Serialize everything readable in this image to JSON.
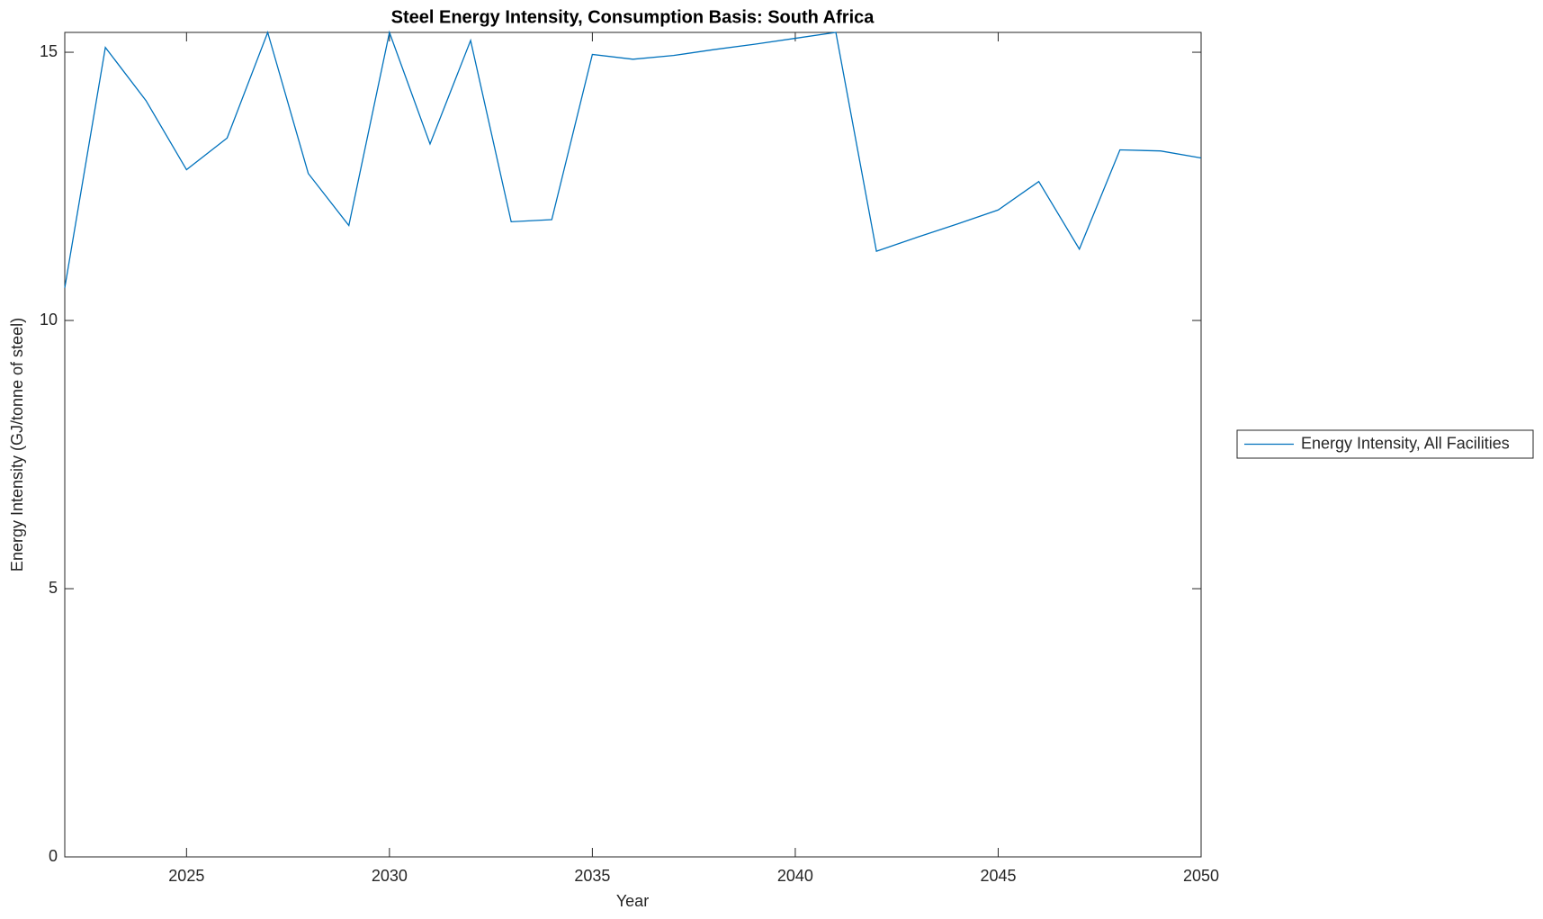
{
  "chart_data": {
    "type": "line",
    "title": "Steel Energy Intensity, Consumption Basis: South Africa",
    "xlabel": "Year",
    "ylabel": "Energy Intensity (GJ/tonne of steel)",
    "x": [
      2022,
      2023,
      2024,
      2025,
      2026,
      2027,
      2028,
      2029,
      2030,
      2031,
      2032,
      2033,
      2034,
      2035,
      2036,
      2037,
      2038,
      2039,
      2040,
      2041,
      2042,
      2043,
      2044,
      2045,
      2046,
      2047,
      2048,
      2049,
      2050
    ],
    "series": [
      {
        "name": "Energy Intensity, All Facilities",
        "color": "#0072bd",
        "values": [
          10.61,
          15.09,
          14.1,
          12.81,
          13.4,
          15.37,
          12.74,
          11.77,
          15.37,
          13.29,
          15.22,
          11.84,
          11.88,
          14.96,
          14.87,
          14.94,
          15.05,
          15.15,
          15.26,
          15.37,
          11.29,
          11.55,
          11.8,
          12.06,
          12.59,
          11.33,
          13.18,
          13.16,
          13.03
        ]
      }
    ],
    "xlim": [
      2022,
      2050
    ],
    "xticks": [
      2025,
      2030,
      2035,
      2040,
      2045,
      2050
    ],
    "ylim": [
      0,
      15.37
    ],
    "yticks": [
      0,
      5,
      10,
      15
    ],
    "legend": "east-outside",
    "grid": false
  }
}
